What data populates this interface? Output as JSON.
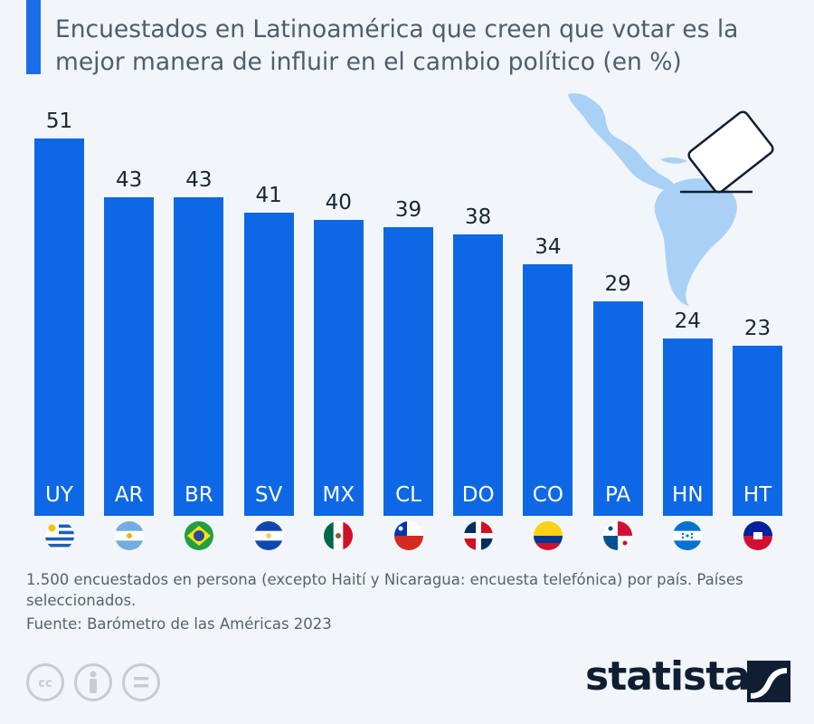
{
  "subtitle": "Encuestados en Latinoamérica que creen que votar es la mejor manera de influir en el cambio político (en %)",
  "chart_data": {
    "type": "bar",
    "categories": [
      "UY",
      "AR",
      "BR",
      "SV",
      "MX",
      "CL",
      "DO",
      "CO",
      "PA",
      "HN",
      "HT"
    ],
    "values": [
      51,
      43,
      43,
      41,
      40,
      39,
      38,
      34,
      29,
      24,
      23
    ],
    "ylim": [
      0,
      51
    ],
    "bar_color": "#0e68e6",
    "grid": false,
    "flag_icons": [
      "uruguay-flag-icon",
      "argentina-flag-icon",
      "brazil-flag-icon",
      "el-salvador-flag-icon",
      "mexico-flag-icon",
      "chile-flag-icon",
      "dominican-republic-flag-icon",
      "colombia-flag-icon",
      "panama-flag-icon",
      "honduras-flag-icon",
      "haiti-flag-icon"
    ]
  },
  "footnote": "1.500 encuestados en persona (excepto Haití y Nicaragua: encuesta telefónica) por país. Países seleccionados.",
  "source": "Fuente: Barómetro de las Américas 2023",
  "brand": {
    "name": "statista",
    "color": "#0f1e33",
    "accent": "#1a6ee8"
  },
  "license_icons": [
    "cc-icon",
    "attribution-icon",
    "no-derivatives-icon"
  ]
}
